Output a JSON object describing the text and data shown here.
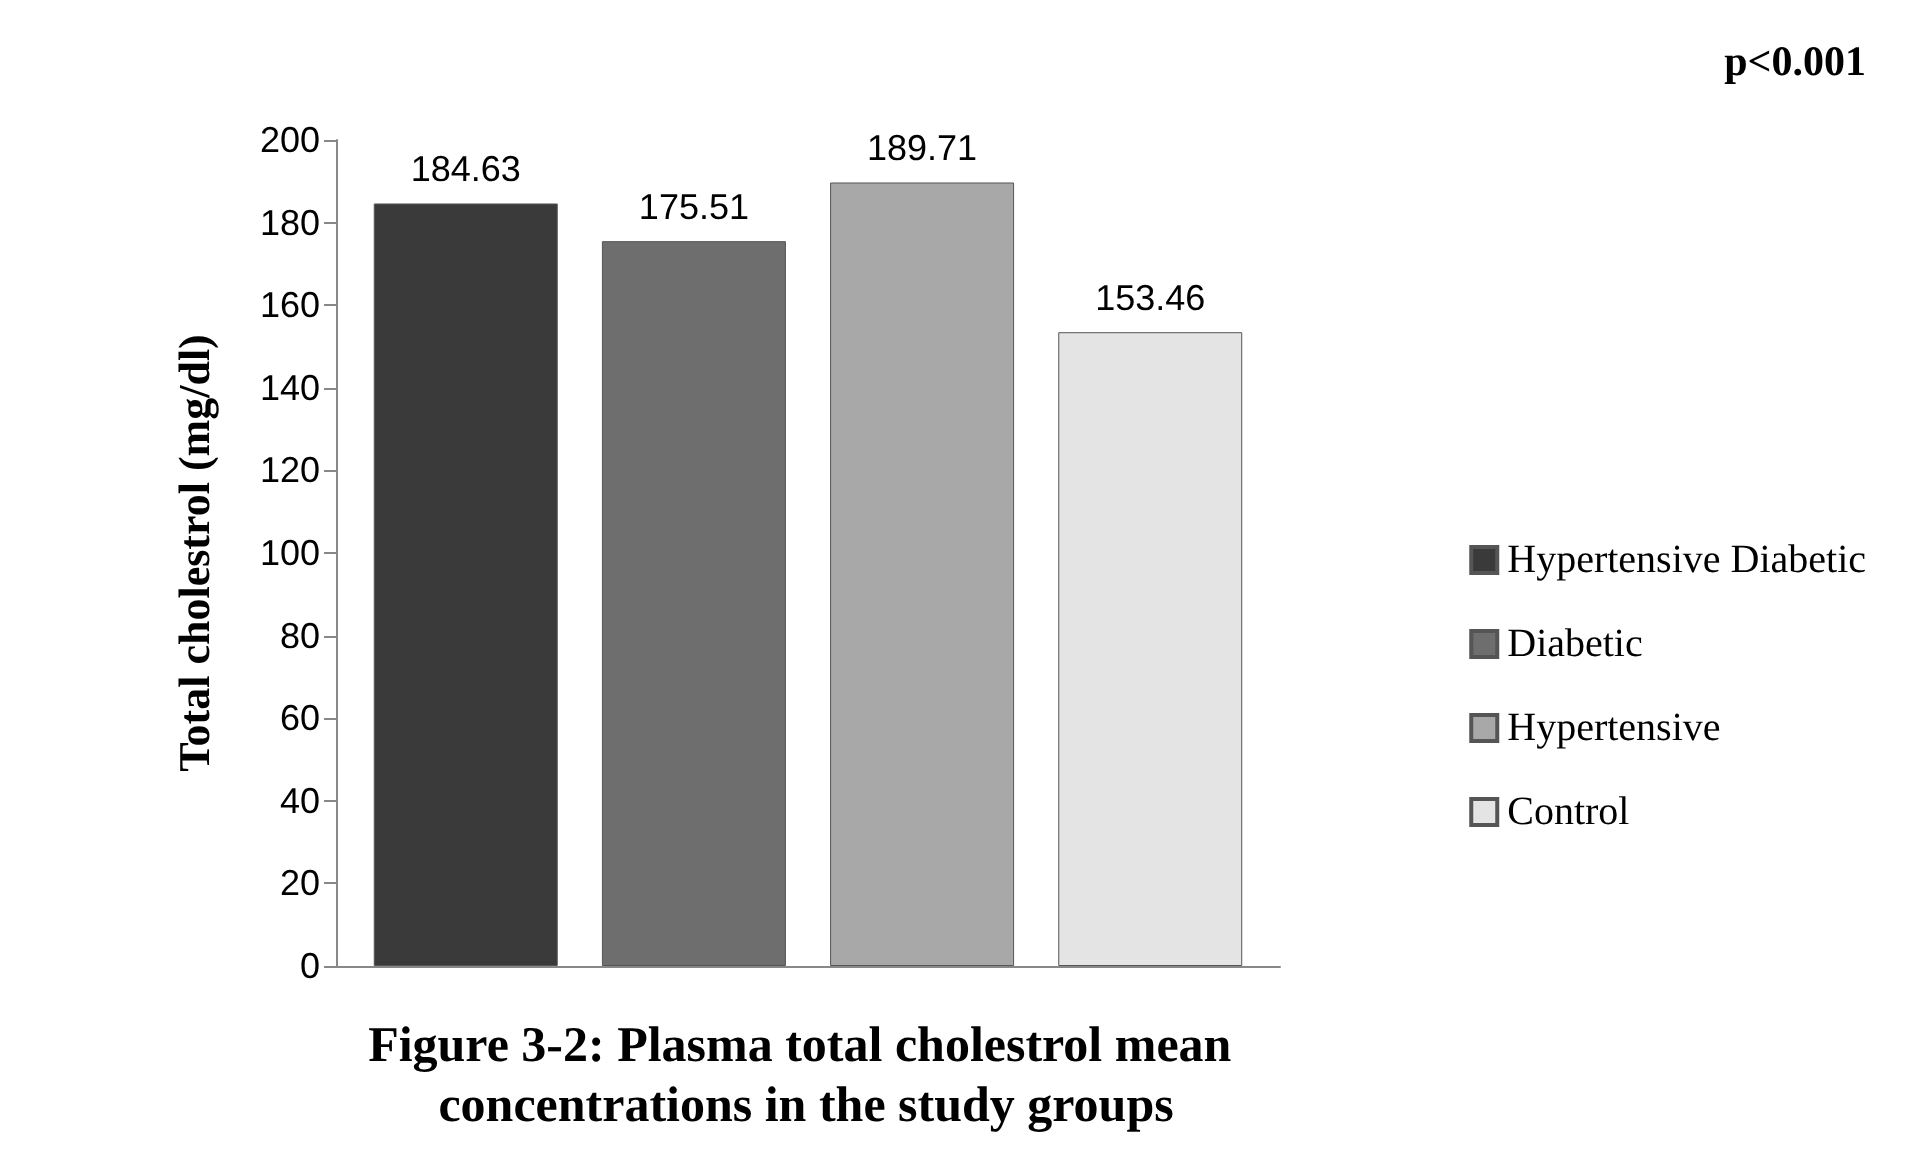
{
  "chart_data": {
    "type": "bar",
    "title": "Figure 3-2: Plasma total cholestrol mean concentrations in the study groups",
    "ylabel": "Total cholestrol (mg/dl)",
    "categories": [
      null
    ],
    "series": [
      {
        "name": "Hypertensive Diabetic",
        "color": "#3a3a3a",
        "values": [
          184.63
        ]
      },
      {
        "name": "Diabetic",
        "color": "#6e6e6e",
        "values": [
          175.51
        ]
      },
      {
        "name": "Hypertensive",
        "color": "#a8a8a8",
        "values": [
          189.71
        ]
      },
      {
        "name": "Control",
        "color": "#e4e4e4",
        "values": [
          153.46
        ]
      }
    ],
    "ylim": [
      0,
      200
    ],
    "yticks": [
      0,
      20,
      40,
      60,
      80,
      100,
      120,
      140,
      160,
      180,
      200
    ],
    "data_labels": true,
    "grid": false,
    "legend": "right",
    "annotations": [
      "p<0.001"
    ]
  }
}
